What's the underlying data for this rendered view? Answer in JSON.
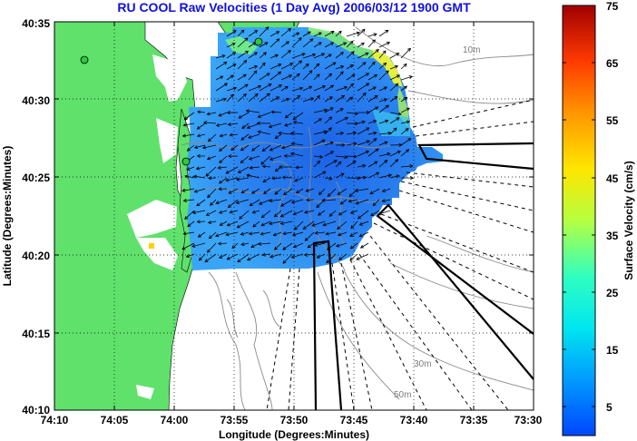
{
  "title": "RU COOL Raw Velocities (1 Day Avg) 2006/03/12 1900 GMT",
  "xlabel": "Longitude (Degrees:Minutes)",
  "ylabel": "Latitude (Degrees:Minutes)",
  "xticks": [
    "74:10",
    "74:05",
    "74:00",
    "73:55",
    "73:50",
    "73:45",
    "73:40",
    "73:35",
    "73:30"
  ],
  "yticks": [
    "40:35",
    "40:30",
    "40:25",
    "40:20",
    "40:15",
    "40:10"
  ],
  "colorbar": {
    "label": "Surface Velocity (cm/s)",
    "min": 0,
    "max": 75,
    "ticks": [
      "75",
      "65",
      "55",
      "45",
      "35",
      "25",
      "15",
      "5"
    ]
  },
  "contour_labels": [
    "10m",
    "30m",
    "50m"
  ],
  "colors": {
    "land": "#5fe16c",
    "title": "#1010e0",
    "velocity_field_main": "#2f8ff0",
    "velocity_field_core": "#1c62e6"
  }
}
